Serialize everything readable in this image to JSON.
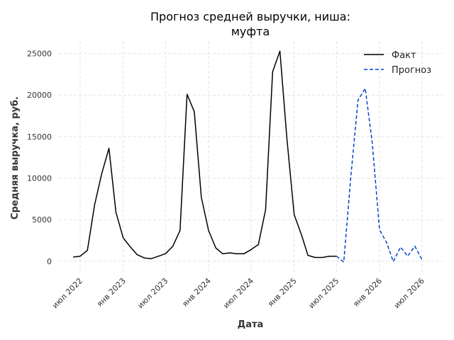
{
  "chart_data": {
    "type": "line",
    "title_lines": [
      "Прогноз средней выручки, ниша:",
      "муфта"
    ],
    "xlabel": "Дата",
    "ylabel": "Средняя выручка, руб.",
    "xlim": [
      "2022-04-01",
      "2026-10-01"
    ],
    "ylim": [
      -1300,
      26500
    ],
    "yticks": [
      0,
      5000,
      10000,
      15000,
      20000,
      25000
    ],
    "xticks": [
      {
        "date": "2022-07-01",
        "label": "июл 2022"
      },
      {
        "date": "2023-01-01",
        "label": "янв 2023"
      },
      {
        "date": "2023-07-01",
        "label": "июл 2023"
      },
      {
        "date": "2024-01-01",
        "label": "янв 2024"
      },
      {
        "date": "2024-07-01",
        "label": "июл 2024"
      },
      {
        "date": "2025-01-01",
        "label": "янв 2025"
      },
      {
        "date": "2025-07-01",
        "label": "июл 2025"
      },
      {
        "date": "2026-01-01",
        "label": "янв 2026"
      },
      {
        "date": "2026-07-01",
        "label": "июл 2026"
      }
    ],
    "grid": true,
    "legend_position": "top-right",
    "series": [
      {
        "name": "Факт",
        "color": "#000000",
        "style": "solid",
        "points": [
          [
            "2022-06-01",
            500
          ],
          [
            "2022-07-01",
            600
          ],
          [
            "2022-08-01",
            1300
          ],
          [
            "2022-09-01",
            6800
          ],
          [
            "2022-10-01",
            10500
          ],
          [
            "2022-11-01",
            13600
          ],
          [
            "2022-12-01",
            5900
          ],
          [
            "2023-01-01",
            2800
          ],
          [
            "2023-02-01",
            1700
          ],
          [
            "2023-03-01",
            800
          ],
          [
            "2023-04-01",
            400
          ],
          [
            "2023-05-01",
            300
          ],
          [
            "2023-06-01",
            600
          ],
          [
            "2023-07-01",
            900
          ],
          [
            "2023-08-01",
            1800
          ],
          [
            "2023-09-01",
            3700
          ],
          [
            "2023-10-01",
            20100
          ],
          [
            "2023-11-01",
            18000
          ],
          [
            "2023-12-01",
            7700
          ],
          [
            "2024-01-01",
            3700
          ],
          [
            "2024-02-01",
            1600
          ],
          [
            "2024-03-01",
            900
          ],
          [
            "2024-04-01",
            1000
          ],
          [
            "2024-05-01",
            900
          ],
          [
            "2024-06-01",
            900
          ],
          [
            "2024-07-01",
            1400
          ],
          [
            "2024-08-01",
            2000
          ],
          [
            "2024-09-01",
            6200
          ],
          [
            "2024-10-01",
            22800
          ],
          [
            "2024-11-01",
            25300
          ],
          [
            "2024-12-01",
            14800
          ],
          [
            "2025-01-01",
            5600
          ],
          [
            "2025-02-01",
            3200
          ],
          [
            "2025-03-01",
            700
          ],
          [
            "2025-04-01",
            450
          ],
          [
            "2025-05-01",
            450
          ],
          [
            "2025-06-01",
            600
          ],
          [
            "2025-07-01",
            600
          ]
        ]
      },
      {
        "name": "Прогноз",
        "color": "#0044cc",
        "style": "dashed",
        "points": [
          [
            "2025-07-01",
            600
          ],
          [
            "2025-08-01",
            -100
          ],
          [
            "2025-09-01",
            10400
          ],
          [
            "2025-10-01",
            19400
          ],
          [
            "2025-11-01",
            20800
          ],
          [
            "2025-12-01",
            14200
          ],
          [
            "2026-01-01",
            3800
          ],
          [
            "2026-02-01",
            2200
          ],
          [
            "2026-03-01",
            -50
          ],
          [
            "2026-04-01",
            1700
          ],
          [
            "2026-05-01",
            600
          ],
          [
            "2026-06-01",
            1800
          ],
          [
            "2026-07-01",
            200
          ]
        ]
      }
    ]
  }
}
